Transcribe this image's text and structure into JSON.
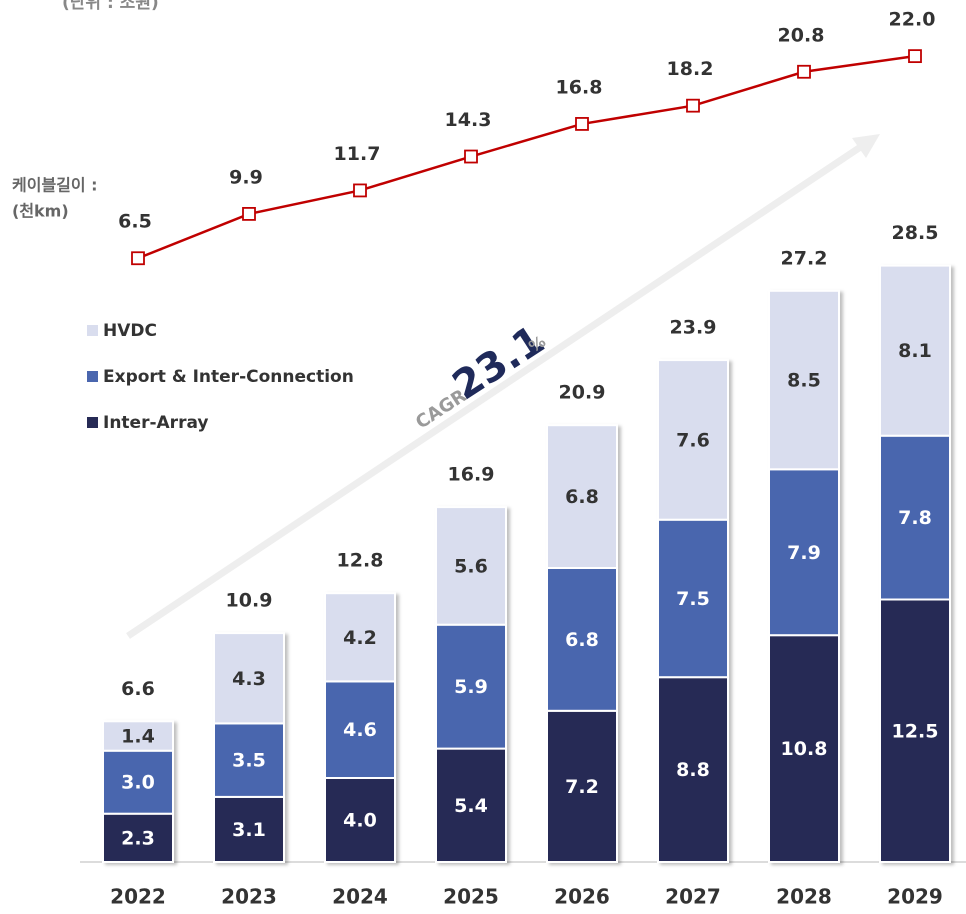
{
  "chart_data": {
    "type": "bar",
    "stacked": true,
    "unit_note": "(단위 : 조원)",
    "categories": [
      "2022",
      "2023",
      "2024",
      "2025",
      "2026",
      "2027",
      "2028",
      "2029"
    ],
    "ylim": [
      0,
      30
    ],
    "series": [
      {
        "name": "Inter-Array",
        "color": "#262a55",
        "values": [
          2.3,
          3.1,
          4.0,
          5.4,
          7.2,
          8.8,
          10.8,
          12.5
        ],
        "value_labels": [
          "2.3",
          "3.1",
          "4.0",
          "5.4",
          "7.2",
          "8.8",
          "10.8",
          "12.5"
        ]
      },
      {
        "name": "Export & Inter-Connection",
        "color": "#4a66ae",
        "values": [
          3.0,
          3.5,
          4.6,
          5.9,
          6.8,
          7.5,
          7.9,
          7.8
        ],
        "value_labels": [
          "3.0",
          "3.5",
          "4.6",
          "5.9",
          "6.8",
          "7.5",
          "7.9",
          "7.8"
        ]
      },
      {
        "name": "HVDC",
        "color": "#d9ddee",
        "values": [
          1.4,
          4.3,
          4.2,
          5.6,
          6.8,
          7.6,
          8.5,
          8.1
        ],
        "value_labels": [
          "1.4",
          "4.3",
          "4.2",
          "5.6",
          "6.8",
          "7.6",
          "8.5",
          "8.1"
        ]
      }
    ],
    "totals": [
      6.6,
      10.9,
      12.8,
      16.9,
      20.9,
      23.9,
      27.2,
      28.5
    ],
    "line": {
      "axis_label": [
        "케이블길이 :",
        "(천km)"
      ],
      "axis": "y2",
      "color": "#c00000",
      "values": [
        6.5,
        9.9,
        11.7,
        14.3,
        16.8,
        18.2,
        20.8,
        22.0
      ],
      "value_labels": [
        "6.5",
        "9.9",
        "11.7",
        "14.3",
        "16.8",
        "18.2",
        "20.8",
        "22.0"
      ]
    },
    "y2lim": [
      0,
      25
    ],
    "cagr": {
      "label": "CAGR",
      "value": 23.1,
      "unit": "%"
    }
  }
}
